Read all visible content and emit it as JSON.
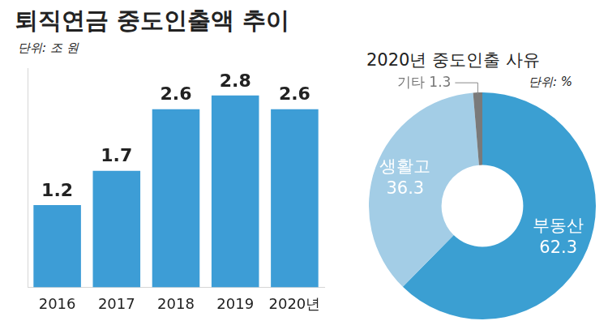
{
  "chart_data": [
    {
      "type": "bar",
      "title": "퇴직연금 중도인출액 추이",
      "subtitle": "단위: 조 원",
      "categories": [
        "2016",
        "2017",
        "2018",
        "2019",
        "2020년"
      ],
      "values": [
        1.2,
        1.7,
        2.6,
        2.8,
        2.6
      ],
      "color": "#3d9dd6",
      "ylim": [
        0,
        3.2
      ],
      "grid": false,
      "tick_labels": "x",
      "data_labels": true
    },
    {
      "type": "doughnut",
      "title": "2020년 중도인출 사유",
      "subtitle": "단위: %",
      "categories": [
        "부동산",
        "생활고",
        "기타"
      ],
      "values": [
        62.3,
        36.3,
        1.3
      ],
      "colors": [
        "#3b9fd2",
        "#a3cde6",
        "#7a7a7a"
      ],
      "data_labels": true
    }
  ]
}
